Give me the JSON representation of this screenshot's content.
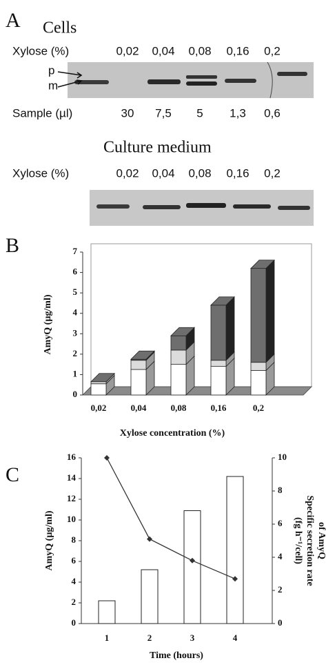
{
  "panel_labels": [
    "A",
    "B",
    "C"
  ],
  "blot": {
    "cells": {
      "title": "Cells",
      "xylose_label": "Xylose (%)",
      "xylose_values": [
        "0,02",
        "0,04",
        "0,08",
        "0,16",
        "0,2"
      ],
      "band_labels": [
        "p",
        "m"
      ],
      "sample_label": "Sample (µl)",
      "sample_values": [
        "30",
        "7,5",
        "5",
        "1,3",
        "0,6"
      ]
    },
    "medium": {
      "title": "Culture medium",
      "xylose_label": "Xylose (%)",
      "xylose_values": [
        "0,02",
        "0,04",
        "0,08",
        "0,16",
        "0,2"
      ]
    }
  },
  "chart_data": [
    {
      "type": "bar",
      "stacked": true,
      "three_d": true,
      "xlabel": "Xylose concentration (%)",
      "ylabel": "AmyQ (µg/ml)",
      "categories": [
        "0,02",
        "0,04",
        "0,08",
        "0,16",
        "0,2"
      ],
      "series": [
        {
          "color": "#ffffff",
          "values": [
            0.55,
            1.25,
            1.5,
            1.4,
            1.2
          ]
        },
        {
          "color": "#dcdcdc",
          "values": [
            0.1,
            0.45,
            0.7,
            0.3,
            0.4
          ]
        },
        {
          "color": "#6e6e6e",
          "values": [
            0,
            0.05,
            0.7,
            2.7,
            4.6
          ]
        }
      ],
      "ylim": [
        0,
        7
      ],
      "yticks": [
        0,
        1,
        2,
        3,
        4,
        5,
        6,
        7
      ]
    },
    {
      "type": "bar",
      "xlabel": "Time (hours)",
      "ylabel": "AmyQ (µg/ml)",
      "y2label": [
        "(fg h⁻¹/cell)",
        "Specific secretion rate",
        "of AmyQ"
      ],
      "categories": [
        "1",
        "2",
        "3",
        "4"
      ],
      "series": [
        {
          "type": "bar",
          "color": "#ffffff",
          "values": [
            2.2,
            5.2,
            10.9,
            14.2
          ]
        },
        {
          "type": "line",
          "axis": "y2",
          "color": "#333333",
          "values": [
            10,
            5.1,
            3.8,
            2.7
          ]
        }
      ],
      "ylim": [
        0,
        16
      ],
      "yticks": [
        0,
        2,
        4,
        6,
        8,
        10,
        12,
        14,
        16
      ],
      "y2lim": [
        0,
        10
      ],
      "y2ticks": [
        0,
        2,
        4,
        6,
        8,
        10
      ]
    }
  ]
}
